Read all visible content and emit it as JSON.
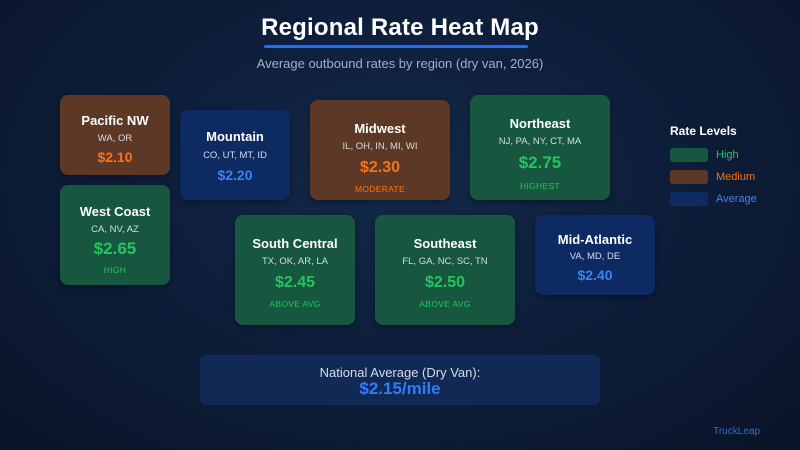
{
  "title": "Regional Rate Heat Map",
  "subtitle": "Average outbound rates by region (dry van, 2026)",
  "colors": {
    "high_bg": "#17573f",
    "high_text": "#22c55e",
    "medium_bg": "#5e3826",
    "medium_text": "#f97316",
    "average_bg": "#0e2a63",
    "average_text": "#3b82f6",
    "accent": "#1f6cff"
  },
  "regions": {
    "pacific_nw": {
      "name": "Pacific NW",
      "states": "WA, OR",
      "rate": "$2.10",
      "level": ""
    },
    "west_coast": {
      "name": "West Coast",
      "states": "CA, NV, AZ",
      "rate": "$2.65",
      "level": "HIGH"
    },
    "mountain": {
      "name": "Mountain",
      "states": "CO, UT, MT, ID",
      "rate": "$2.20",
      "level": ""
    },
    "midwest": {
      "name": "Midwest",
      "states": "IL, OH, IN, MI, WI",
      "rate": "$2.30",
      "level": "MODERATE"
    },
    "northeast": {
      "name": "Northeast",
      "states": "NJ, PA, NY, CT, MA",
      "rate": "$2.75",
      "level": "HIGHEST"
    },
    "south_central": {
      "name": "South Central",
      "states": "TX, OK, AR, LA",
      "rate": "$2.45",
      "level": "ABOVE AVG"
    },
    "southeast": {
      "name": "Southeast",
      "states": "FL, GA, NC, SC, TN",
      "rate": "$2.50",
      "level": "ABOVE AVG"
    },
    "mid_atlantic": {
      "name": "Mid-Atlantic",
      "states": "VA, MD, DE",
      "rate": "$2.40",
      "level": ""
    }
  },
  "legend": {
    "title": "Rate Levels",
    "high": "High",
    "medium": "Medium",
    "average": "Average"
  },
  "national": {
    "label": "National Average (Dry Van):",
    "value": "$2.15/mile"
  },
  "brand": "TruckLeap"
}
